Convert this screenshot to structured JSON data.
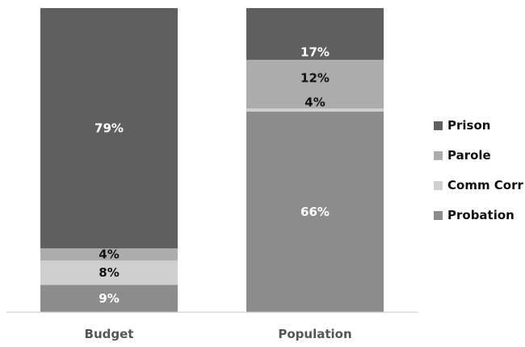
{
  "chart_data": {
    "type": "bar",
    "stacked": true,
    "title": "",
    "xlabel": "",
    "ylabel": "",
    "ylim": [
      0,
      100
    ],
    "grid": false,
    "legend_position": "right",
    "categories": [
      "Budget",
      "Population"
    ],
    "series": [
      {
        "name": "Probation",
        "values": [
          9,
          66
        ],
        "labels": [
          "9%",
          "66%"
        ],
        "color": "#8c8c8c",
        "label_color": [
          "#ffffff",
          "#ffffff"
        ]
      },
      {
        "name": "Comm Corr",
        "values": [
          8,
          1
        ],
        "labels": [
          "8%",
          ""
        ],
        "color": "#cfcfcf",
        "label_color": [
          "#111111",
          "#111111"
        ]
      },
      {
        "name": "Parole",
        "values": [
          4,
          4
        ],
        "labels": [
          "4%",
          "4%"
        ],
        "color": "#acacac",
        "label_color": [
          "#111111",
          "#111111"
        ]
      },
      {
        "name": "Prison",
        "values": [
          79,
          29
        ],
        "labels": [
          "79%",
          "17%"
        ],
        "color": "#5f5f5f",
        "label_color": [
          "#ffffff",
          "#ffffff"
        ]
      }
    ],
    "population_extra_segment": {
      "label": "12%",
      "color": "#acacac",
      "label_color": "#111111"
    },
    "legend_order": [
      "Prison",
      "Parole",
      "Comm Corr",
      "Probation"
    ]
  }
}
